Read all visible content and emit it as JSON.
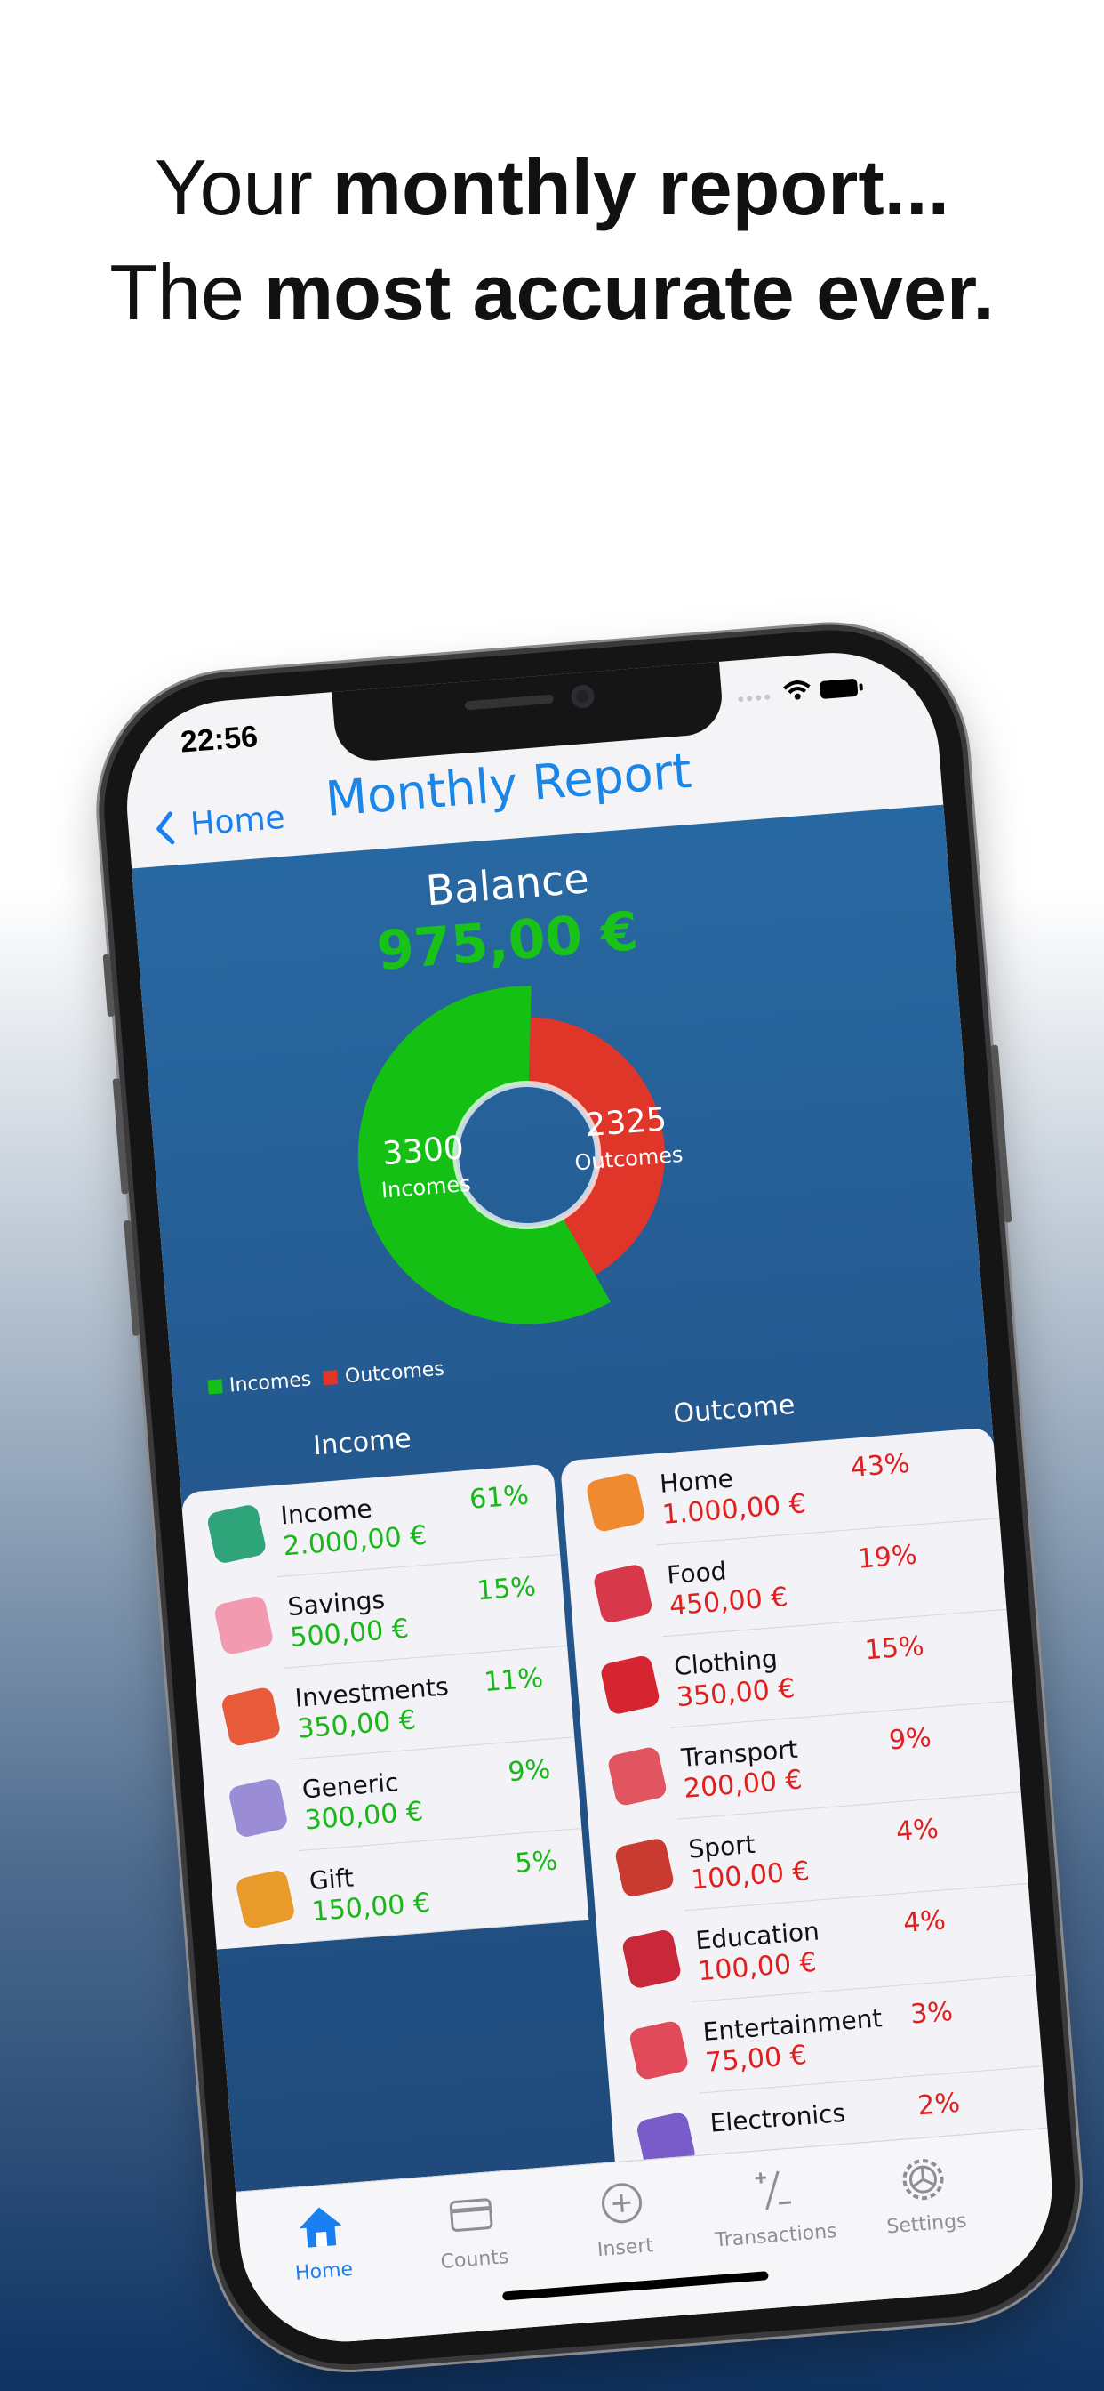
{
  "headline": [
    {
      "regular": "Your",
      "bold": "monthly report..."
    },
    {
      "regular": "The",
      "bold": "most accurate ever."
    }
  ],
  "status_bar": {
    "time": "22:56"
  },
  "nav": {
    "back": "Home",
    "title": "Monthly Report"
  },
  "balance": {
    "label": "Balance",
    "amount": "975,00 €"
  },
  "chart": {
    "type": "pie",
    "labels": [
      "Incomes",
      "Outcomes"
    ],
    "values": [
      3300,
      2325
    ],
    "colors": [
      "#14c014",
      "#e0362a"
    ]
  },
  "income": {
    "title": "Income",
    "items": [
      {
        "name": "Income",
        "amount": "2.000,00 €",
        "percent": "61%"
      },
      {
        "name": "Savings",
        "amount": "500,00 €",
        "percent": "15%"
      },
      {
        "name": "Investments",
        "amount": "350,00 €",
        "percent": "11%"
      },
      {
        "name": "Generic",
        "amount": "300,00 €",
        "percent": "9%"
      },
      {
        "name": "Gift",
        "amount": "150,00 €",
        "percent": "5%"
      }
    ]
  },
  "outcome": {
    "title": "Outcome",
    "items": [
      {
        "name": "Home",
        "amount": "1.000,00 €",
        "percent": "43%"
      },
      {
        "name": "Food",
        "amount": "450,00 €",
        "percent": "19%"
      },
      {
        "name": "Clothing",
        "amount": "350,00 €",
        "percent": "15%"
      },
      {
        "name": "Transport",
        "amount": "200,00 €",
        "percent": "9%"
      },
      {
        "name": "Sport",
        "amount": "100,00 €",
        "percent": "4%"
      },
      {
        "name": "Education",
        "amount": "100,00 €",
        "percent": "4%"
      },
      {
        "name": "Entertainment",
        "amount": "75,00 €",
        "percent": "3%"
      },
      {
        "name": "Electronics",
        "percent": "2%"
      }
    ]
  },
  "tab_bar": {
    "items": [
      "Home",
      "Counts",
      "Insert",
      "Transactions",
      "Settings"
    ],
    "active": 0
  }
}
